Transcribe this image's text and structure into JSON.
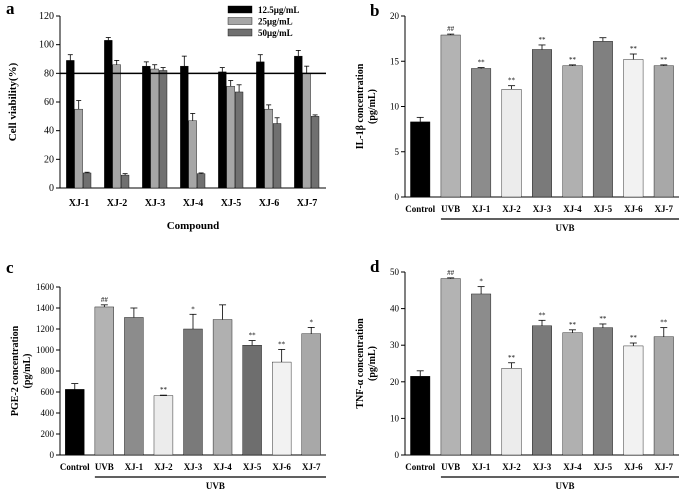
{
  "chart_data": [
    {
      "panel": "a",
      "type": "bar",
      "title": "",
      "ylabel": "Cell viability(%)",
      "xlabel": "Compound",
      "ylim": [
        0,
        120
      ],
      "yticks": [
        0,
        20,
        40,
        60,
        80,
        100,
        120
      ],
      "categories": [
        "XJ-1",
        "XJ-2",
        "XJ-3",
        "XJ-4",
        "XJ-5",
        "XJ-6",
        "XJ-7"
      ],
      "series": [
        {
          "name": "12.5μg/mL",
          "color": "#000000",
          "values": [
            89,
            103,
            85,
            85,
            81,
            88,
            92
          ],
          "errors": [
            4,
            2,
            3,
            7,
            3,
            5,
            4
          ]
        },
        {
          "name": "25μg/mL",
          "color": "#a6a6a6",
          "values": [
            55,
            86,
            83,
            47,
            71,
            55,
            80
          ],
          "errors": [
            6,
            3,
            3,
            5,
            4,
            3,
            5
          ]
        },
        {
          "name": "50μg/mL",
          "color": "#707070",
          "values": [
            10.5,
            9,
            82,
            10,
            67,
            45,
            50
          ],
          "errors": [
            0.5,
            1,
            2,
            0.5,
            5,
            4,
            1
          ]
        }
      ],
      "reference_line": 80,
      "legend_position": "top-right"
    },
    {
      "panel": "b",
      "type": "bar",
      "ylabel": "IL-1β concentration (pg/mL)",
      "ylim": [
        0,
        20
      ],
      "yticks": [
        0,
        5,
        10,
        15,
        20
      ],
      "categories": [
        "Control",
        "UVB",
        "XJ-1",
        "XJ-2",
        "XJ-3",
        "XJ-4",
        "XJ-5",
        "XJ-6",
        "XJ-7"
      ],
      "values": [
        8.3,
        17.9,
        14.2,
        11.9,
        16.3,
        14.5,
        17.2,
        15.2,
        14.5
      ],
      "errors": [
        0.5,
        0.1,
        0.1,
        0.4,
        0.5,
        0.1,
        0.4,
        0.6,
        0.1
      ],
      "annotations": [
        "",
        "##",
        "**",
        "**",
        "**",
        "**",
        "",
        "**",
        "**"
      ],
      "colors": [
        "#000000",
        "#b3b3b3",
        "#8c8c8c",
        "#ececec",
        "#7a7a7a",
        "#b0b0b0",
        "#808080",
        "#f2f2f2",
        "#a8a8a8"
      ],
      "group_label": "UVB"
    },
    {
      "panel": "c",
      "type": "bar",
      "ylabel": "PGE-2 concentration (pg/mL)",
      "ylim": [
        0,
        1600
      ],
      "yticks": [
        0,
        200,
        400,
        600,
        800,
        1000,
        1200,
        1400,
        1600
      ],
      "categories": [
        "Control",
        "UVB",
        "XJ-1",
        "XJ-2",
        "XJ-3",
        "XJ-4",
        "XJ-5",
        "XJ-6",
        "XJ-7"
      ],
      "values": [
        625,
        1410,
        1310,
        565,
        1200,
        1290,
        1045,
        885,
        1155
      ],
      "errors": [
        55,
        20,
        90,
        5,
        140,
        140,
        45,
        120,
        60
      ],
      "annotations": [
        "",
        "##",
        "",
        "**",
        "*",
        "",
        "**",
        "**",
        "*"
      ],
      "colors": [
        "#000000",
        "#b3b3b3",
        "#8c8c8c",
        "#ececec",
        "#7a7a7a",
        "#b0b0b0",
        "#6e6e6e",
        "#f2f2f2",
        "#a8a8a8"
      ],
      "group_label": "UVB"
    },
    {
      "panel": "d",
      "type": "bar",
      "ylabel": "TNF-α concentration (pg/mL)",
      "ylim": [
        0,
        50
      ],
      "yticks": [
        0,
        10,
        20,
        30,
        40,
        50
      ],
      "categories": [
        "Control",
        "UVB",
        "XJ-1",
        "XJ-2",
        "XJ-3",
        "XJ-4",
        "XJ-5",
        "XJ-6",
        "XJ-7"
      ],
      "values": [
        21.5,
        48.2,
        44,
        23.7,
        35.3,
        33.4,
        34.8,
        29.8,
        32.3
      ],
      "errors": [
        1.5,
        0.2,
        2,
        1.5,
        1.5,
        0.8,
        1,
        0.8,
        2.5
      ],
      "annotations": [
        "",
        "##",
        "*",
        "**",
        "**",
        "**",
        "**",
        "**",
        "**"
      ],
      "colors": [
        "#000000",
        "#b3b3b3",
        "#8c8c8c",
        "#ececec",
        "#7a7a7a",
        "#b0b0b0",
        "#808080",
        "#f2f2f2",
        "#a8a8a8"
      ],
      "group_label": "UVB"
    }
  ]
}
